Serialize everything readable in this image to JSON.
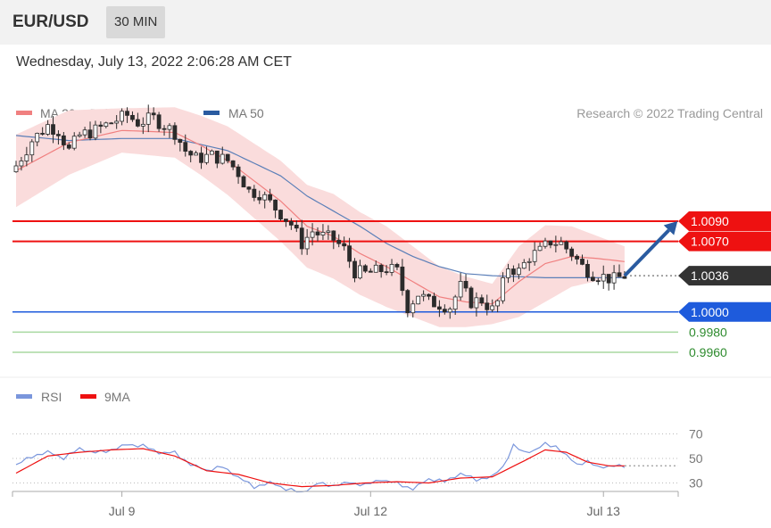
{
  "header": {
    "symbol": "EUR/USD",
    "timeframe": "30 MIN"
  },
  "timestamp": "Wednesday, July 13, 2022 2:06:28 AM CET",
  "colors": {
    "ma20": "#f08080",
    "bands": "#fadcdc",
    "ma50": "#5b7fb8",
    "resistance": "#ee1111",
    "support_blue": "#1e5bdc",
    "support_green": "#a8d8a0",
    "candle_up": "#2b2b2b",
    "candle_down": "#2b2b2b",
    "arrow": "#2a5ba0",
    "rsi": "#7a96dc",
    "rsi_ma": "#ee1111",
    "current_label": "#333333"
  },
  "chart_data": [
    {
      "type": "candlestick",
      "legend": [
        {
          "name": "MA 20 + Bollinger Bands",
          "color": "#f08080"
        },
        {
          "name": "MA 50",
          "color": "#2a5ba0"
        }
      ],
      "credit": "Research © 2022 Trading Central",
      "ylim": [
        0.9945,
        1.0205
      ],
      "x_ticks": [
        {
          "index": 20,
          "label": "Jul 9"
        },
        {
          "index": 67,
          "label": "Jul 12"
        },
        {
          "index": 111,
          "label": "Jul 13"
        }
      ],
      "price_levels": [
        {
          "value": 1.009,
          "label": "1.0090",
          "kind": "resistance"
        },
        {
          "value": 1.007,
          "label": "1.0070",
          "kind": "resistance"
        },
        {
          "value": 1.0036,
          "label": "1.0036",
          "kind": "current"
        },
        {
          "value": 1.0,
          "label": "1.0000",
          "kind": "pivot"
        },
        {
          "value": 0.998,
          "label": "0.9980",
          "kind": "support"
        },
        {
          "value": 0.996,
          "label": "0.9960",
          "kind": "support"
        }
      ],
      "forecast_arrow": {
        "from_index": 115,
        "from_price": 1.0036,
        "to_index": 125,
        "to_price": 1.009
      },
      "close_keypoints": [
        [
          0,
          1.0145
        ],
        [
          3,
          1.017
        ],
        [
          6,
          1.0185
        ],
        [
          8,
          1.018
        ],
        [
          10,
          1.016
        ],
        [
          12,
          1.0175
        ],
        [
          15,
          1.018
        ],
        [
          18,
          1.0188
        ],
        [
          21,
          1.0195
        ],
        [
          23,
          1.0188
        ],
        [
          26,
          1.0192
        ],
        [
          28,
          1.0185
        ],
        [
          30,
          1.0178
        ],
        [
          32,
          1.016
        ],
        [
          34,
          1.0152
        ],
        [
          37,
          1.0155
        ],
        [
          40,
          1.015
        ],
        [
          42,
          1.0138
        ],
        [
          44,
          1.012
        ],
        [
          46,
          1.0118
        ],
        [
          48,
          1.0108
        ],
        [
          50,
          1.0098
        ],
        [
          52,
          1.0087
        ],
        [
          54,
          1.0068
        ],
        [
          56,
          1.008
        ],
        [
          58,
          1.0075
        ],
        [
          60,
          1.0072
        ],
        [
          62,
          1.0062
        ],
        [
          64,
          1.004
        ],
        [
          66,
          1.0038
        ],
        [
          68,
          1.004
        ],
        [
          70,
          1.0043
        ],
        [
          72,
          1.004
        ],
        [
          74,
          1.0005
        ],
        [
          76,
          1.0018
        ],
        [
          78,
          1.001
        ],
        [
          80,
          1.0008
        ],
        [
          82,
          1.0005
        ],
        [
          84,
          1.0025
        ],
        [
          86,
          1.001
        ],
        [
          88,
          1.0012
        ],
        [
          90,
          1.0002
        ],
        [
          91,
          1.001
        ],
        [
          93,
          1.0045
        ],
        [
          95,
          1.004
        ],
        [
          97,
          1.0055
        ],
        [
          99,
          1.006
        ],
        [
          101,
          1.007
        ],
        [
          103,
          1.0068
        ],
        [
          105,
          1.0058
        ],
        [
          107,
          1.0045
        ],
        [
          109,
          1.0038
        ],
        [
          111,
          1.0035
        ],
        [
          113,
          1.0032
        ],
        [
          115,
          1.0036
        ]
      ],
      "ma20_keypoints": [
        [
          0,
          1.014
        ],
        [
          10,
          1.0168
        ],
        [
          20,
          1.018
        ],
        [
          30,
          1.0178
        ],
        [
          35,
          1.0165
        ],
        [
          40,
          1.015
        ],
        [
          45,
          1.013
        ],
        [
          50,
          1.011
        ],
        [
          55,
          1.0085
        ],
        [
          60,
          1.0075
        ],
        [
          65,
          1.0058
        ],
        [
          70,
          1.0045
        ],
        [
          75,
          1.003
        ],
        [
          80,
          1.0015
        ],
        [
          85,
          1.001
        ],
        [
          90,
          1.0008
        ],
        [
          95,
          1.003
        ],
        [
          100,
          1.0048
        ],
        [
          105,
          1.0055
        ],
        [
          110,
          1.0053
        ],
        [
          115,
          1.005
        ]
      ],
      "ma50_keypoints": [
        [
          0,
          1.0175
        ],
        [
          10,
          1.017
        ],
        [
          20,
          1.0172
        ],
        [
          30,
          1.0172
        ],
        [
          40,
          1.016
        ],
        [
          50,
          1.0135
        ],
        [
          55,
          1.0115
        ],
        [
          60,
          1.01
        ],
        [
          65,
          1.0085
        ],
        [
          70,
          1.0068
        ],
        [
          75,
          1.0055
        ],
        [
          80,
          1.0045
        ],
        [
          85,
          1.0038
        ],
        [
          90,
          1.0036
        ],
        [
          95,
          1.0035
        ],
        [
          100,
          1.0034
        ],
        [
          105,
          1.0034
        ],
        [
          110,
          1.0034
        ],
        [
          115,
          1.0034
        ]
      ],
      "band_width_keypoints": [
        [
          0,
          0.0036
        ],
        [
          10,
          0.0032
        ],
        [
          20,
          0.0022
        ],
        [
          30,
          0.0025
        ],
        [
          40,
          0.0034
        ],
        [
          50,
          0.004
        ],
        [
          60,
          0.0042
        ],
        [
          70,
          0.004
        ],
        [
          80,
          0.003
        ],
        [
          90,
          0.002
        ],
        [
          95,
          0.0035
        ],
        [
          100,
          0.0038
        ],
        [
          105,
          0.003
        ],
        [
          110,
          0.0022
        ],
        [
          115,
          0.0015
        ]
      ]
    },
    {
      "type": "line",
      "legend": [
        {
          "name": "RSI",
          "color": "#7a96dc"
        },
        {
          "name": "9MA",
          "color": "#ee1111"
        }
      ],
      "ylim": [
        18,
        82
      ],
      "y_ticks": [
        30,
        50,
        70
      ],
      "rsi_keypoints": [
        [
          0,
          45
        ],
        [
          3,
          52
        ],
        [
          6,
          55
        ],
        [
          9,
          50
        ],
        [
          12,
          58
        ],
        [
          15,
          55
        ],
        [
          18,
          57
        ],
        [
          21,
          61
        ],
        [
          24,
          60
        ],
        [
          27,
          55
        ],
        [
          30,
          55
        ],
        [
          33,
          45
        ],
        [
          36,
          40
        ],
        [
          39,
          43
        ],
        [
          42,
          35
        ],
        [
          45,
          27
        ],
        [
          48,
          30
        ],
        [
          51,
          25
        ],
        [
          54,
          22
        ],
        [
          57,
          30
        ],
        [
          60,
          28
        ],
        [
          63,
          30
        ],
        [
          66,
          28
        ],
        [
          69,
          33
        ],
        [
          72,
          30
        ],
        [
          75,
          25
        ],
        [
          78,
          33
        ],
        [
          81,
          31
        ],
        [
          84,
          38
        ],
        [
          87,
          33
        ],
        [
          90,
          35
        ],
        [
          92,
          43
        ],
        [
          94,
          60
        ],
        [
          96,
          55
        ],
        [
          98,
          57
        ],
        [
          100,
          62
        ],
        [
          102,
          60
        ],
        [
          104,
          52
        ],
        [
          106,
          45
        ],
        [
          108,
          47
        ],
        [
          110,
          43
        ],
        [
          112,
          44
        ],
        [
          115,
          44
        ]
      ],
      "ma_keypoints": [
        [
          0,
          38
        ],
        [
          6,
          52
        ],
        [
          12,
          55
        ],
        [
          18,
          57
        ],
        [
          24,
          58
        ],
        [
          30,
          52
        ],
        [
          36,
          40
        ],
        [
          42,
          37
        ],
        [
          48,
          30
        ],
        [
          54,
          27
        ],
        [
          60,
          28
        ],
        [
          66,
          30
        ],
        [
          72,
          31
        ],
        [
          78,
          30
        ],
        [
          84,
          34
        ],
        [
          90,
          35
        ],
        [
          96,
          48
        ],
        [
          100,
          57
        ],
        [
          104,
          55
        ],
        [
          108,
          47
        ],
        [
          112,
          44
        ],
        [
          115,
          44
        ]
      ]
    }
  ]
}
